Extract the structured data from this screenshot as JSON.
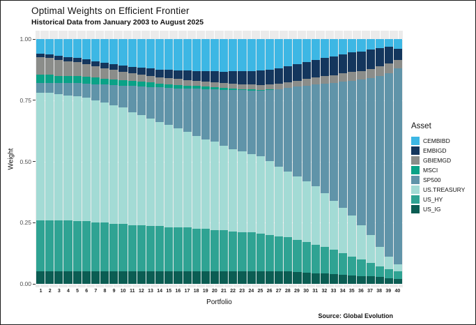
{
  "title": "Optimal Weights on Efficient Frontier",
  "subtitle": "Historical Data from January 2003 to August 2025",
  "source": "Source: Global Evolution",
  "chart_data": {
    "type": "bar",
    "stacked": true,
    "title": "Optimal Weights on Efficient Frontier",
    "subtitle": "Historical Data from January 2003 to August 2025",
    "xlabel": "Portfolio",
    "ylabel": "Weight",
    "ylim": [
      0,
      1
    ],
    "legend_title": "Asset",
    "legend_position": "right",
    "panel_background": "#ebebeb",
    "x": [
      1,
      2,
      3,
      4,
      5,
      6,
      7,
      8,
      9,
      10,
      11,
      12,
      13,
      14,
      15,
      16,
      17,
      18,
      19,
      20,
      21,
      22,
      23,
      24,
      25,
      26,
      27,
      28,
      29,
      30,
      31,
      32,
      33,
      34,
      35,
      36,
      37,
      38,
      39,
      40
    ],
    "yticks": [
      {
        "label": "1.00",
        "value": 1
      },
      {
        "label": "0.75",
        "value": 0.75
      },
      {
        "label": "0.50",
        "value": 0.5
      },
      {
        "label": "0.25",
        "value": 0.25
      },
      {
        "label": "0.00",
        "value": 0
      }
    ],
    "stack_order_top_to_bottom": [
      "CEMBIBD",
      "EMBIGD",
      "GBIEMGD",
      "MSCI",
      "SP500",
      "US.TREASURY",
      "US_HY",
      "US_IG"
    ],
    "series": [
      {
        "name": "CEMBIBD",
        "color": "#3db7e4",
        "values": [
          0.06,
          0.062,
          0.069,
          0.073,
          0.077,
          0.084,
          0.091,
          0.097,
          0.102,
          0.108,
          0.113,
          0.117,
          0.12,
          0.124,
          0.126,
          0.127,
          0.129,
          0.13,
          0.131,
          0.132,
          0.133,
          0.132,
          0.132,
          0.131,
          0.129,
          0.125,
          0.119,
          0.111,
          0.102,
          0.093,
          0.086,
          0.078,
          0.072,
          0.063,
          0.055,
          0.05,
          0.044,
          0.037,
          0.03,
          0.04
        ]
      },
      {
        "name": "EMBIGD",
        "color": "#14365d",
        "values": [
          0.015,
          0.015,
          0.016,
          0.017,
          0.018,
          0.02,
          0.021,
          0.022,
          0.024,
          0.025,
          0.027,
          0.028,
          0.03,
          0.032,
          0.034,
          0.036,
          0.038,
          0.04,
          0.042,
          0.045,
          0.047,
          0.05,
          0.052,
          0.055,
          0.058,
          0.06,
          0.063,
          0.066,
          0.068,
          0.07,
          0.072,
          0.074,
          0.076,
          0.078,
          0.08,
          0.08,
          0.078,
          0.075,
          0.07,
          0.045
        ]
      },
      {
        "name": "GBIEMGD",
        "color": "#8b8d8a",
        "values": [
          0.07,
          0.068,
          0.065,
          0.06,
          0.055,
          0.05,
          0.046,
          0.042,
          0.038,
          0.035,
          0.032,
          0.03,
          0.028,
          0.026,
          0.025,
          0.024,
          0.023,
          0.022,
          0.021,
          0.02,
          0.02,
          0.02,
          0.02,
          0.02,
          0.02,
          0.021,
          0.022,
          0.023,
          0.025,
          0.027,
          0.028,
          0.03,
          0.032,
          0.034,
          0.035,
          0.036,
          0.038,
          0.04,
          0.04,
          0.035
        ]
      },
      {
        "name": "MSCI",
        "color": "#0aa287",
        "values": [
          0.035,
          0.035,
          0.03,
          0.03,
          0.03,
          0.028,
          0.026,
          0.025,
          0.024,
          0.022,
          0.02,
          0.019,
          0.018,
          0.016,
          0.015,
          0.014,
          0.012,
          0.011,
          0.01,
          0.008,
          0.007,
          0.006,
          0.005,
          0.004,
          0.003,
          0.002,
          0.001,
          0,
          0,
          0,
          0,
          0,
          0,
          0,
          0,
          0,
          0,
          0,
          0,
          0
        ]
      },
      {
        "name": "SP500",
        "color": "#6094a9",
        "values": [
          0.04,
          0.04,
          0.045,
          0.05,
          0.055,
          0.058,
          0.066,
          0.074,
          0.082,
          0.09,
          0.108,
          0.116,
          0.129,
          0.142,
          0.15,
          0.164,
          0.178,
          0.192,
          0.206,
          0.215,
          0.228,
          0.242,
          0.251,
          0.26,
          0.27,
          0.292,
          0.315,
          0.34,
          0.365,
          0.39,
          0.414,
          0.448,
          0.48,
          0.515,
          0.55,
          0.594,
          0.64,
          0.698,
          0.75,
          0.8
        ]
      },
      {
        "name": "US.TREASURY",
        "color": "#a3dbd5",
        "values": [
          0.52,
          0.52,
          0.515,
          0.51,
          0.51,
          0.505,
          0.5,
          0.49,
          0.485,
          0.475,
          0.46,
          0.45,
          0.44,
          0.425,
          0.42,
          0.405,
          0.39,
          0.38,
          0.365,
          0.36,
          0.345,
          0.335,
          0.33,
          0.32,
          0.315,
          0.3,
          0.285,
          0.27,
          0.26,
          0.25,
          0.24,
          0.22,
          0.2,
          0.185,
          0.17,
          0.14,
          0.115,
          0.08,
          0.05,
          0.03
        ]
      },
      {
        "name": "US_HY",
        "color": "#2fa393",
        "values": [
          0.21,
          0.21,
          0.21,
          0.21,
          0.205,
          0.205,
          0.2,
          0.2,
          0.195,
          0.195,
          0.19,
          0.19,
          0.185,
          0.185,
          0.18,
          0.18,
          0.18,
          0.175,
          0.175,
          0.17,
          0.17,
          0.165,
          0.16,
          0.16,
          0.155,
          0.15,
          0.145,
          0.14,
          0.132,
          0.124,
          0.116,
          0.108,
          0.1,
          0.087,
          0.075,
          0.068,
          0.055,
          0.043,
          0.036,
          0.03
        ]
      },
      {
        "name": "US_IG",
        "color": "#0b5d53",
        "values": [
          0.05,
          0.05,
          0.05,
          0.05,
          0.05,
          0.05,
          0.05,
          0.05,
          0.05,
          0.05,
          0.05,
          0.05,
          0.05,
          0.05,
          0.05,
          0.05,
          0.05,
          0.05,
          0.05,
          0.05,
          0.05,
          0.05,
          0.05,
          0.05,
          0.05,
          0.05,
          0.05,
          0.05,
          0.048,
          0.046,
          0.044,
          0.042,
          0.04,
          0.038,
          0.035,
          0.032,
          0.03,
          0.027,
          0.024,
          0.02
        ]
      }
    ]
  }
}
